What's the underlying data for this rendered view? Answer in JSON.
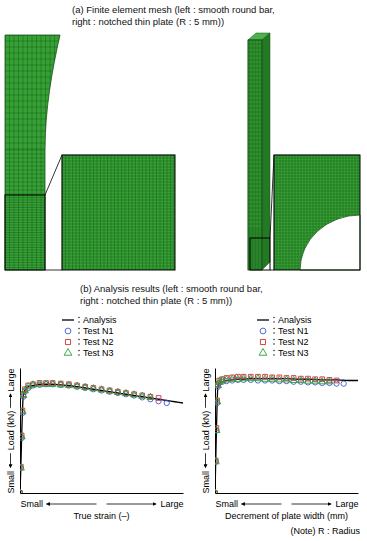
{
  "figure": {
    "title_a": [
      "(a) Finite element mesh (left : smooth round bar,",
      "right : notched thin plate (R : 5 mm))"
    ],
    "title_b": [
      "(b) Analysis results (left : smooth round bar,",
      "right : notched thin plate (R : 5 mm))"
    ],
    "note": "(Note) R : Radius"
  },
  "chart_data": [
    {
      "type": "line",
      "x_label": "True strain (–)",
      "y_label": "Load (kN)",
      "xlim": [
        0,
        1
      ],
      "ylim": [
        0,
        1
      ],
      "xticks": [
        {
          "value": 0,
          "label": "Small"
        },
        {
          "value": 1,
          "label": "Large"
        }
      ],
      "yticks": [
        {
          "value": 0,
          "label": "Small"
        },
        {
          "value": 1,
          "label": "Large"
        }
      ],
      "legend": "top",
      "x": [
        0,
        0.005,
        0.01,
        0.015,
        0.02,
        0.03,
        0.05,
        0.08,
        0.12,
        0.16,
        0.2,
        0.25,
        0.3,
        0.35,
        0.4,
        0.45,
        0.5,
        0.55,
        0.6,
        0.65,
        0.7,
        0.75,
        0.8,
        0.85,
        0.9,
        0.95,
        1.0
      ],
      "series": [
        {
          "name": "Analysis",
          "type": "line",
          "line_style": "solid",
          "color": "#000000",
          "values": [
            0,
            0.2,
            0.45,
            0.65,
            0.78,
            0.82,
            0.85,
            0.86,
            0.87,
            0.87,
            0.87,
            0.865,
            0.86,
            0.85,
            0.84,
            0.83,
            0.82,
            0.81,
            0.8,
            0.79,
            0.78,
            0.77,
            0.76,
            0.75,
            0.74,
            0.73,
            0.72
          ]
        },
        {
          "name": "Test N1",
          "type": "scatter",
          "marker": "circle",
          "color": "#3a5fcd",
          "values": [
            0,
            0.2,
            0.44,
            0.64,
            0.77,
            0.81,
            0.84,
            0.86,
            0.865,
            0.87,
            0.87,
            0.865,
            0.86,
            0.85,
            0.84,
            0.83,
            0.82,
            0.81,
            0.8,
            0.79,
            0.78,
            0.765,
            0.75,
            0.735,
            0.72,
            null,
            null
          ]
        },
        {
          "name": "Test N2",
          "type": "scatter",
          "marker": "square",
          "color": "#d03030",
          "values": [
            0,
            0.21,
            0.46,
            0.66,
            0.79,
            0.83,
            0.86,
            0.87,
            0.88,
            0.88,
            0.88,
            0.875,
            0.87,
            0.86,
            0.85,
            0.84,
            0.83,
            0.82,
            0.81,
            0.8,
            0.79,
            0.78,
            0.77,
            0.76,
            null,
            null,
            null
          ]
        },
        {
          "name": "Test N3",
          "type": "scatter",
          "marker": "triangle",
          "color": "#2e9e3e",
          "values": [
            0,
            0.2,
            0.45,
            0.65,
            0.78,
            0.82,
            0.85,
            0.865,
            0.87,
            0.87,
            0.87,
            0.865,
            0.86,
            0.855,
            0.845,
            0.835,
            0.825,
            0.815,
            0.805,
            0.795,
            0.785,
            0.775,
            0.765,
            null,
            null,
            null,
            null
          ]
        }
      ]
    },
    {
      "type": "line",
      "x_label": "Decrement of plate width (mm)",
      "y_label": "Load (kN)",
      "xlim": [
        0,
        1
      ],
      "ylim": [
        0,
        1
      ],
      "xticks": [
        {
          "value": 0,
          "label": "Small"
        },
        {
          "value": 1,
          "label": "Large"
        }
      ],
      "yticks": [
        {
          "value": 0,
          "label": "Small"
        },
        {
          "value": 1,
          "label": "Large"
        }
      ],
      "legend": "top",
      "x": [
        0,
        0.005,
        0.01,
        0.015,
        0.02,
        0.03,
        0.05,
        0.08,
        0.12,
        0.16,
        0.2,
        0.25,
        0.3,
        0.35,
        0.4,
        0.45,
        0.5,
        0.55,
        0.6,
        0.65,
        0.7,
        0.75,
        0.8,
        0.85,
        0.9,
        0.95,
        1.0
      ],
      "series": [
        {
          "name": "Analysis",
          "type": "line",
          "line_style": "solid",
          "color": "#000000",
          "values": [
            0,
            0.25,
            0.5,
            0.72,
            0.85,
            0.88,
            0.89,
            0.9,
            0.905,
            0.91,
            0.91,
            0.915,
            0.915,
            0.915,
            0.915,
            0.915,
            0.915,
            0.912,
            0.91,
            0.91,
            0.908,
            0.905,
            0.905,
            0.905,
            0.902,
            0.9,
            0.9
          ]
        },
        {
          "name": "Test N1",
          "type": "scatter",
          "marker": "circle",
          "color": "#3a5fcd",
          "values": [
            0,
            0.25,
            0.5,
            0.72,
            0.85,
            0.88,
            0.89,
            0.895,
            0.9,
            0.905,
            0.905,
            0.905,
            0.9,
            0.9,
            0.9,
            0.895,
            0.895,
            0.89,
            0.89,
            0.885,
            0.885,
            0.88,
            0.88,
            0.875,
            0.875,
            null,
            null
          ]
        },
        {
          "name": "Test N2",
          "type": "scatter",
          "marker": "square",
          "color": "#d03030",
          "values": [
            0,
            0.26,
            0.52,
            0.74,
            0.87,
            0.9,
            0.91,
            0.92,
            0.925,
            0.93,
            0.93,
            0.93,
            0.93,
            0.93,
            0.925,
            0.925,
            0.92,
            0.92,
            0.915,
            0.915,
            0.91,
            0.91,
            0.905,
            0.9,
            null,
            null,
            null
          ]
        },
        {
          "name": "Test N3",
          "type": "scatter",
          "marker": "triangle",
          "color": "#2e9e3e",
          "values": [
            0,
            0.25,
            0.5,
            0.73,
            0.86,
            0.89,
            0.9,
            0.905,
            0.91,
            0.91,
            0.915,
            0.915,
            0.915,
            0.91,
            0.91,
            0.905,
            0.905,
            0.9,
            0.9,
            0.895,
            0.895,
            0.89,
            0.89,
            null,
            null,
            null,
            null
          ]
        }
      ]
    }
  ]
}
